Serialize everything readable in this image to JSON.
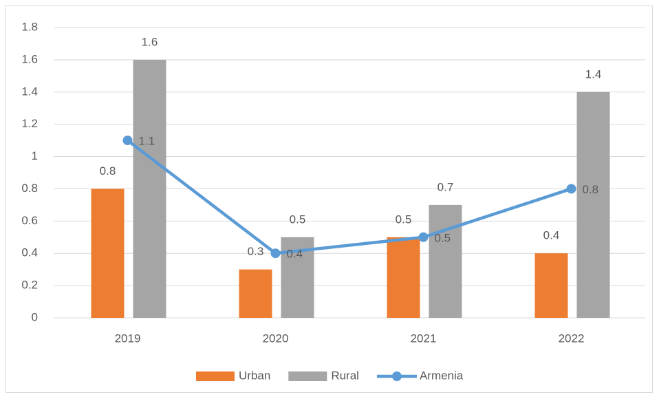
{
  "chart_data": {
    "type": "bar",
    "categories": [
      "2019",
      "2020",
      "2021",
      "2022"
    ],
    "series": [
      {
        "name": "Urban",
        "type": "bar",
        "color": "#ED7D31",
        "values": [
          0.8,
          0.3,
          0.5,
          0.4
        ]
      },
      {
        "name": "Rural",
        "type": "bar",
        "color": "#A5A5A5",
        "values": [
          1.6,
          0.5,
          0.7,
          1.4
        ]
      },
      {
        "name": "Armenia",
        "type": "line",
        "color": "#5B9BD5",
        "values": [
          1.1,
          0.4,
          0.5,
          0.8
        ]
      }
    ],
    "ylim": [
      0,
      1.8
    ],
    "yticks": [
      0,
      0.2,
      0.4,
      0.6,
      0.8,
      1,
      1.2,
      1.4,
      1.6,
      1.8
    ],
    "grid": true,
    "legend": "bottom"
  }
}
